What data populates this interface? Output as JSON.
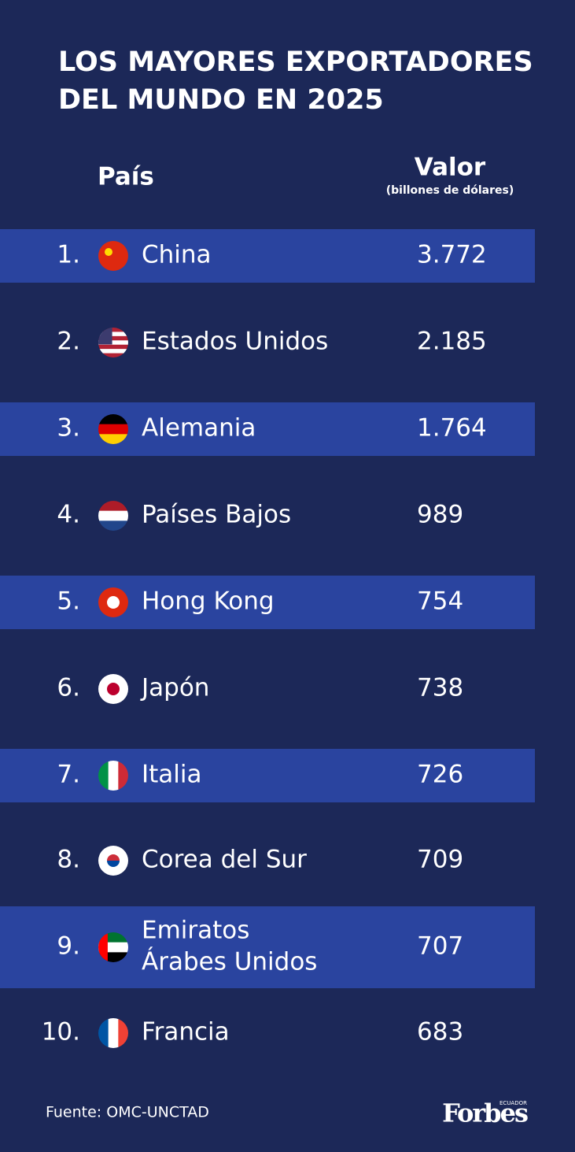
{
  "header": {
    "title_lines": [
      "LOS MAYORES EXPORTADORES",
      "DEL MUNDO EN 2025"
    ]
  },
  "table": {
    "columns": {
      "country": "País",
      "value": "Valor",
      "value_unit": "(billones de dólares)"
    },
    "rows": [
      {
        "rank": "1.",
        "country_lines": [
          "China"
        ],
        "value": "3.772"
      },
      {
        "rank": "2.",
        "country_lines": [
          "Estados Unidos"
        ],
        "value": "2.185"
      },
      {
        "rank": "3.",
        "country_lines": [
          "Alemania"
        ],
        "value": "1.764"
      },
      {
        "rank": "4.",
        "country_lines": [
          "Países Bajos"
        ],
        "value": "989"
      },
      {
        "rank": "5.",
        "country_lines": [
          "Hong Kong"
        ],
        "value": "754"
      },
      {
        "rank": "6.",
        "country_lines": [
          "Japón"
        ],
        "value": "738"
      },
      {
        "rank": "7.",
        "country_lines": [
          "Italia"
        ],
        "value": "726"
      },
      {
        "rank": "8.",
        "country_lines": [
          "Corea del Sur"
        ],
        "value": "709"
      },
      {
        "rank": "9.",
        "country_lines": [
          "Emiratos",
          "Árabes Unidos"
        ],
        "value": "707"
      },
      {
        "rank": "10.",
        "country_lines": [
          "Francia"
        ],
        "value": "683"
      }
    ]
  },
  "footer": {
    "source": "Fuente: OMC-UNCTAD",
    "logo": "Forbes",
    "logo_sub": "ECUADOR"
  }
}
